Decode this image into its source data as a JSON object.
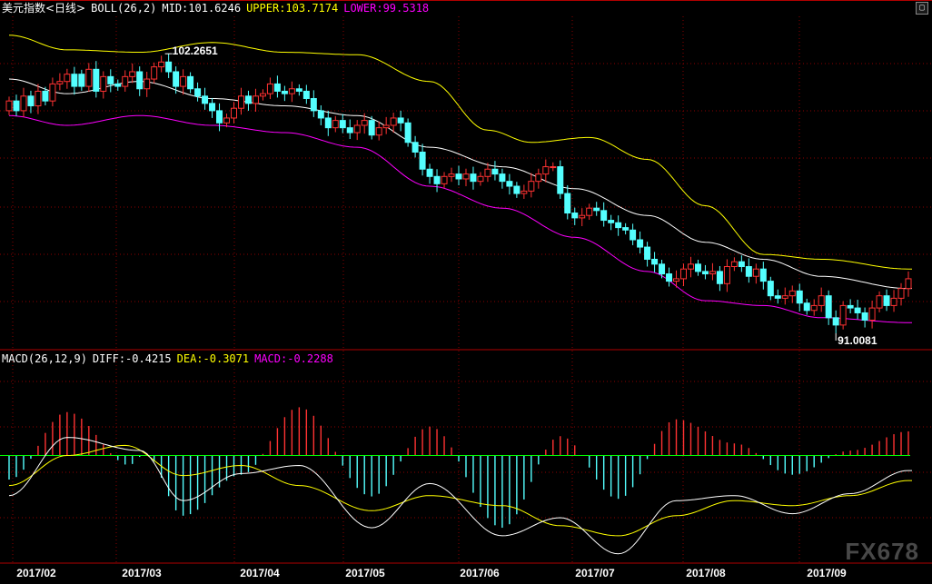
{
  "header_main": {
    "title": "美元指数<日线>",
    "boll_label": "BOLL(26,2)",
    "mid": "MID:101.6246",
    "upper": "UPPER:103.7174",
    "lower": "LOWER:99.5318"
  },
  "header_macd": {
    "label": "MACD(26,12,9)",
    "diff": "DIFF:-0.4215",
    "dea": "DEA:-0.3071",
    "macd": "MACD:-0.2288"
  },
  "annotations": {
    "high": "102.2651",
    "low": "91.0081"
  },
  "x_labels": [
    "2017/02",
    "2017/03",
    "2017/04",
    "2017/05",
    "2017/06",
    "2017/07",
    "2017/08",
    "2017/09"
  ],
  "watermark": "FX678",
  "colors": {
    "background": "#000000",
    "up": "#ff3232",
    "down": "#54ffff",
    "mid": "#ffffff",
    "upper": "#ffff00",
    "lower": "#ff00ff",
    "grid": "#8b0000",
    "zero": "#00ff00",
    "deа_color": "#ffff00",
    "header_white": "#ffffff",
    "header_yellow": "#ffff00",
    "header_magenta": "#ff00ff"
  },
  "chart_data": {
    "type": "line",
    "title": "美元指数<日线>",
    "price_ylim": [
      90.5,
      104.0
    ],
    "candles": {
      "o": [
        100.2,
        100.6,
        100.2,
        100.8,
        100.4,
        101.0,
        100.6,
        101.3,
        101.4,
        101.7,
        101.7,
        101.2,
        101.9,
        101.0,
        101.6,
        101.3,
        101.2,
        101.6,
        101.8,
        101.1,
        101.5,
        102.0,
        102.2,
        101.8,
        101.2,
        101.6,
        101.1,
        100.8,
        100.5,
        100.2,
        99.7,
        99.9,
        100.3,
        100.8,
        100.5,
        100.8,
        100.9,
        101.3,
        101.0,
        100.9,
        101.1,
        101.0,
        100.7,
        100.2,
        99.9,
        99.5,
        99.8,
        99.5,
        99.3,
        99.6,
        99.8,
        99.2,
        99.5,
        99.6,
        99.9,
        99.7,
        98.9,
        98.5,
        97.8,
        97.5,
        97.2,
        97.5,
        97.6,
        97.4,
        97.6,
        97.3,
        97.5,
        97.8,
        97.6,
        97.3,
        97.1,
        96.8,
        96.9,
        97.3,
        97.6,
        97.9,
        97.9,
        96.8,
        96.0,
        95.8,
        95.9,
        96.2,
        96.1,
        95.7,
        95.6,
        95.4,
        95.3,
        94.9,
        94.6,
        94.1,
        93.9,
        93.5,
        93.2,
        93.3,
        93.7,
        93.9,
        93.6,
        93.5,
        93.6,
        93.1,
        93.8,
        94.0,
        93.8,
        93.4,
        93.7,
        93.2,
        92.6,
        92.5,
        92.6,
        92.8,
        92.3,
        92.0,
        92.2,
        92.6,
        91.7,
        91.4,
        92.2,
        92.1,
        91.9,
        91.6,
        92.1,
        92.6,
        92.2,
        92.5,
        92.9
      ],
      "c": [
        100.6,
        100.2,
        100.8,
        100.4,
        101.0,
        100.6,
        101.3,
        101.4,
        101.7,
        101.2,
        101.2,
        101.9,
        101.0,
        101.6,
        101.3,
        101.2,
        101.6,
        101.8,
        101.1,
        101.5,
        102.0,
        102.2,
        101.8,
        101.2,
        101.6,
        101.1,
        100.8,
        100.5,
        100.2,
        99.7,
        99.9,
        100.3,
        100.8,
        100.5,
        100.8,
        100.9,
        101.3,
        101.0,
        100.9,
        101.1,
        101.0,
        100.7,
        100.2,
        99.9,
        99.5,
        99.8,
        99.5,
        99.3,
        99.6,
        99.8,
        99.2,
        99.5,
        99.6,
        99.9,
        99.7,
        98.9,
        98.5,
        97.8,
        97.5,
        97.2,
        97.5,
        97.6,
        97.4,
        97.6,
        97.3,
        97.5,
        97.8,
        97.6,
        97.3,
        97.1,
        96.8,
        96.9,
        97.3,
        97.6,
        97.9,
        97.9,
        96.8,
        96.0,
        95.8,
        95.9,
        96.2,
        96.1,
        95.7,
        95.6,
        95.4,
        95.3,
        94.9,
        94.6,
        94.1,
        93.9,
        93.5,
        93.2,
        93.3,
        93.7,
        93.9,
        93.6,
        93.5,
        93.6,
        93.1,
        93.8,
        94.0,
        93.8,
        93.4,
        93.7,
        93.2,
        92.6,
        92.5,
        92.6,
        92.8,
        92.3,
        92.0,
        92.2,
        92.6,
        91.7,
        91.4,
        92.2,
        92.1,
        91.9,
        91.6,
        92.1,
        92.6,
        92.2,
        92.5,
        92.9,
        93.3
      ]
    },
    "boll_upper_keys": [
      [
        0,
        103.3
      ],
      [
        8,
        102.7
      ],
      [
        18,
        102.6
      ],
      [
        28,
        103.0
      ],
      [
        38,
        102.6
      ],
      [
        48,
        102.5
      ],
      [
        58,
        101.4
      ],
      [
        66,
        99.4
      ],
      [
        72,
        98.9
      ],
      [
        80,
        99.1
      ],
      [
        88,
        98.2
      ],
      [
        96,
        96.3
      ],
      [
        104,
        94.3
      ],
      [
        112,
        94.1
      ],
      [
        124,
        93.7
      ]
    ],
    "boll_mid_keys": [
      [
        0,
        101.5
      ],
      [
        8,
        100.9
      ],
      [
        18,
        101.4
      ],
      [
        28,
        100.7
      ],
      [
        38,
        100.4
      ],
      [
        48,
        100.0
      ],
      [
        58,
        98.7
      ],
      [
        68,
        97.9
      ],
      [
        78,
        97.0
      ],
      [
        88,
        95.9
      ],
      [
        96,
        94.8
      ],
      [
        104,
        94.1
      ],
      [
        112,
        93.4
      ],
      [
        124,
        92.9
      ]
    ],
    "boll_lower_keys": [
      [
        0,
        100.0
      ],
      [
        8,
        99.6
      ],
      [
        18,
        100.0
      ],
      [
        28,
        99.6
      ],
      [
        38,
        99.3
      ],
      [
        48,
        98.7
      ],
      [
        58,
        97.1
      ],
      [
        68,
        96.2
      ],
      [
        78,
        95.0
      ],
      [
        88,
        93.6
      ],
      [
        96,
        92.4
      ],
      [
        104,
        92.2
      ],
      [
        112,
        91.7
      ],
      [
        124,
        91.5
      ]
    ],
    "macd_ylim": [
      -1.0,
      0.9
    ],
    "diff_keys": [
      [
        0,
        -0.4
      ],
      [
        8,
        0.18
      ],
      [
        18,
        0.05
      ],
      [
        24,
        -0.45
      ],
      [
        32,
        -0.18
      ],
      [
        40,
        -0.1
      ],
      [
        50,
        -0.72
      ],
      [
        58,
        -0.28
      ],
      [
        68,
        -0.8
      ],
      [
        76,
        -0.62
      ],
      [
        84,
        -0.98
      ],
      [
        92,
        -0.45
      ],
      [
        100,
        -0.4
      ],
      [
        108,
        -0.58
      ],
      [
        116,
        -0.38
      ],
      [
        124,
        -0.15
      ]
    ],
    "dea_keys": [
      [
        0,
        -0.3
      ],
      [
        8,
        0.0
      ],
      [
        16,
        0.1
      ],
      [
        24,
        -0.2
      ],
      [
        32,
        -0.1
      ],
      [
        40,
        -0.3
      ],
      [
        50,
        -0.55
      ],
      [
        58,
        -0.4
      ],
      [
        68,
        -0.5
      ],
      [
        76,
        -0.7
      ],
      [
        84,
        -0.8
      ],
      [
        92,
        -0.6
      ],
      [
        100,
        -0.45
      ],
      [
        108,
        -0.5
      ],
      [
        116,
        -0.4
      ],
      [
        124,
        -0.25
      ]
    ]
  }
}
